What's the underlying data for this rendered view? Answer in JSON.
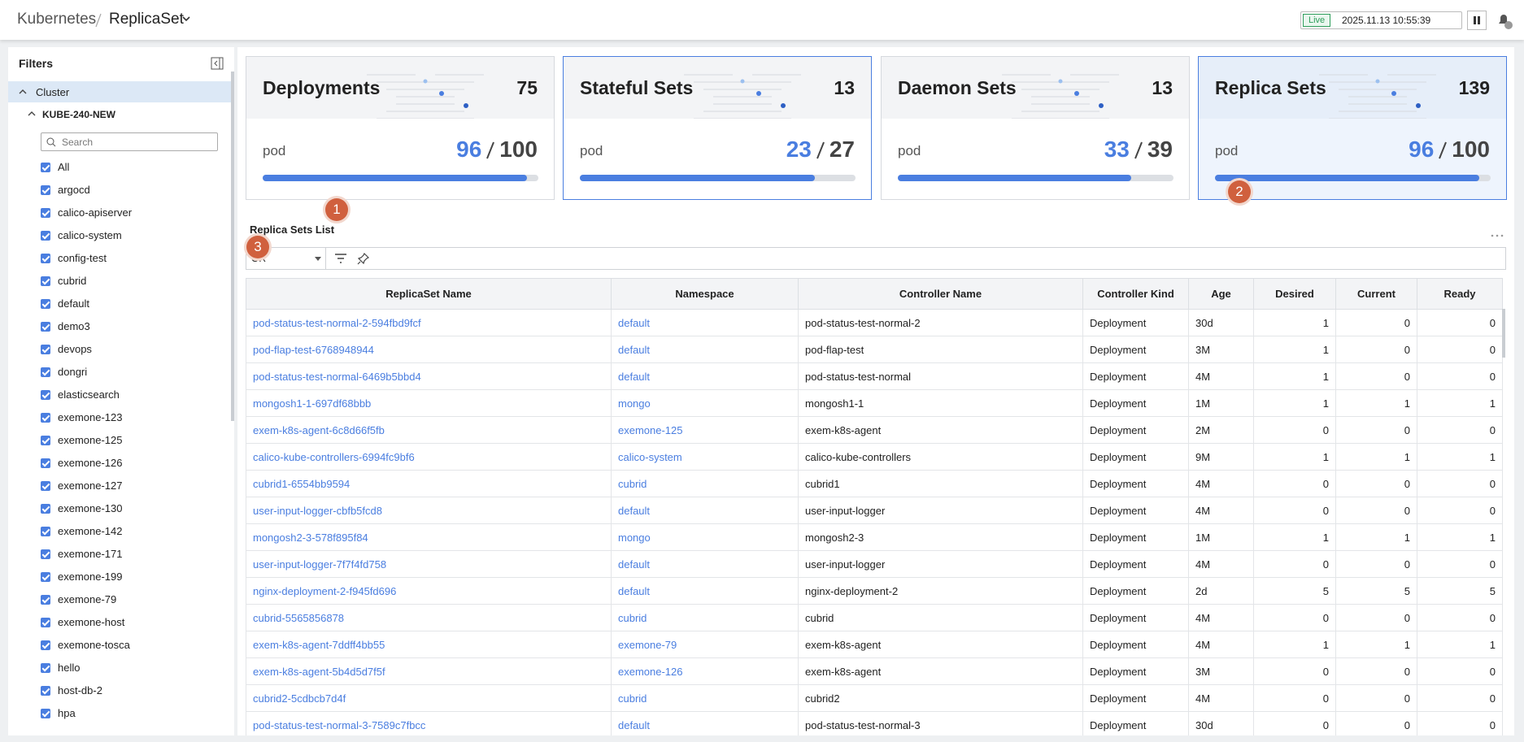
{
  "header": {
    "breadcrumb": [
      "Kubernetes",
      "ReplicaSet"
    ],
    "live": "Live",
    "timestamp": "2025.11.13 10:55:39"
  },
  "filters": {
    "title": "Filters",
    "cluster": "Cluster",
    "cluster_name": "KUBE-240-NEW",
    "search_placeholder": "Search",
    "namespaces": [
      "All",
      "argocd",
      "calico-apiserver",
      "calico-system",
      "config-test",
      "cubrid",
      "default",
      "demo3",
      "devops",
      "dongri",
      "elasticsearch",
      "exemone-123",
      "exemone-125",
      "exemone-126",
      "exemone-127",
      "exemone-130",
      "exemone-142",
      "exemone-171",
      "exemone-199",
      "exemone-79",
      "exemone-host",
      "exemone-tosca",
      "hello",
      "host-db-2",
      "hpa"
    ]
  },
  "cards": [
    {
      "title": "Deployments",
      "count": 75,
      "label": "pod",
      "current": 96,
      "total": 100
    },
    {
      "title": "Stateful Sets",
      "count": 13,
      "label": "pod",
      "current": 23,
      "total": 27
    },
    {
      "title": "Daemon Sets",
      "count": 13,
      "label": "pod",
      "current": 33,
      "total": 39
    },
    {
      "title": "Replica Sets",
      "count": 139,
      "label": "pod",
      "current": 96,
      "total": 100
    }
  ],
  "list": {
    "title": "Replica Sets List",
    "logic": "OR",
    "markers": [
      "1",
      "2",
      "3"
    ],
    "columns": [
      "ReplicaSet Name",
      "Namespace",
      "Controller Name",
      "Controller Kind",
      "Age",
      "Desired",
      "Current",
      "Ready"
    ],
    "rows": [
      [
        "pod-status-test-normal-2-594fbd9fcf",
        "default",
        "pod-status-test-normal-2",
        "Deployment",
        "30d",
        1,
        0,
        0
      ],
      [
        "pod-flap-test-6768948944",
        "default",
        "pod-flap-test",
        "Deployment",
        "3M",
        1,
        0,
        0
      ],
      [
        "pod-status-test-normal-6469b5bbd4",
        "default",
        "pod-status-test-normal",
        "Deployment",
        "4M",
        1,
        0,
        0
      ],
      [
        "mongosh1-1-697df68bbb",
        "mongo",
        "mongosh1-1",
        "Deployment",
        "1M",
        1,
        1,
        1
      ],
      [
        "exem-k8s-agent-6c8d66f5fb",
        "exemone-125",
        "exem-k8s-agent",
        "Deployment",
        "2M",
        0,
        0,
        0
      ],
      [
        "calico-kube-controllers-6994fc9bf6",
        "calico-system",
        "calico-kube-controllers",
        "Deployment",
        "9M",
        1,
        1,
        1
      ],
      [
        "cubrid1-6554bb9594",
        "cubrid",
        "cubrid1",
        "Deployment",
        "4M",
        0,
        0,
        0
      ],
      [
        "user-input-logger-cbfb5fcd8",
        "default",
        "user-input-logger",
        "Deployment",
        "4M",
        0,
        0,
        0
      ],
      [
        "mongosh2-3-578f895f84",
        "mongo",
        "mongosh2-3",
        "Deployment",
        "1M",
        1,
        1,
        1
      ],
      [
        "user-input-logger-7f7f4fd758",
        "default",
        "user-input-logger",
        "Deployment",
        "4M",
        0,
        0,
        0
      ],
      [
        "nginx-deployment-2-f945fd696",
        "default",
        "nginx-deployment-2",
        "Deployment",
        "2d",
        5,
        5,
        5
      ],
      [
        "cubrid-5565856878",
        "cubrid",
        "cubrid",
        "Deployment",
        "4M",
        0,
        0,
        0
      ],
      [
        "exem-k8s-agent-7ddff4bb55",
        "exemone-79",
        "exem-k8s-agent",
        "Deployment",
        "4M",
        1,
        1,
        1
      ],
      [
        "exem-k8s-agent-5b4d5d7f5f",
        "exemone-126",
        "exem-k8s-agent",
        "Deployment",
        "3M",
        0,
        0,
        0
      ],
      [
        "cubrid2-5cdbcb7d4f",
        "cubrid",
        "cubrid2",
        "Deployment",
        "4M",
        0,
        0,
        0
      ],
      [
        "pod-status-test-normal-3-7589c7fbcc",
        "default",
        "pod-status-test-normal-3",
        "Deployment",
        "30d",
        0,
        0,
        0
      ]
    ]
  }
}
